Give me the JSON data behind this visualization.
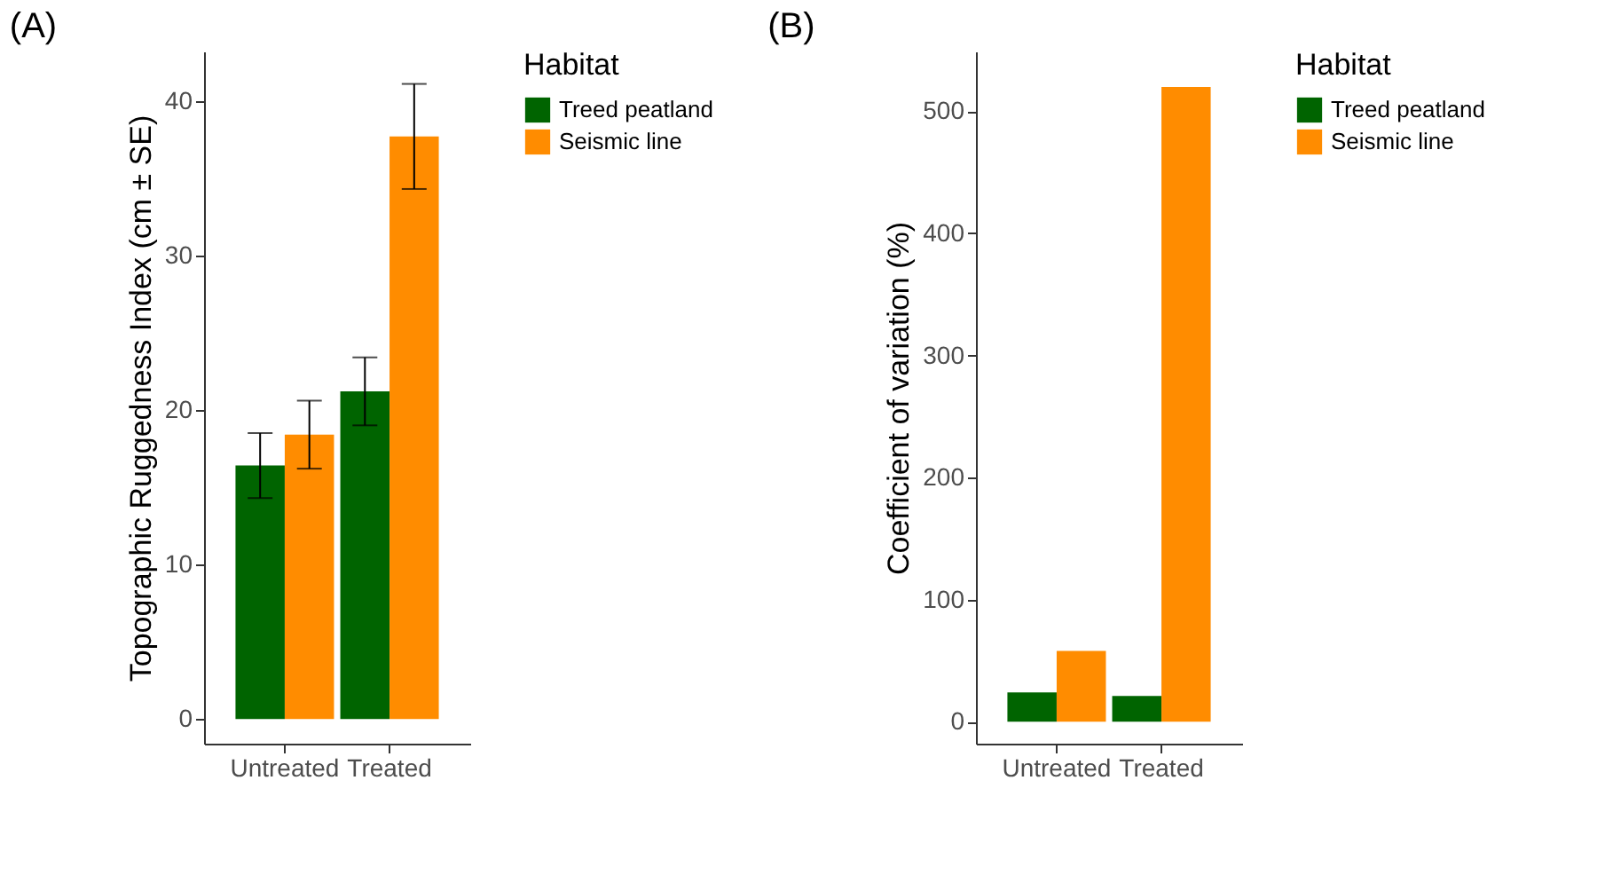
{
  "chart_data": [
    {
      "type": "bar",
      "title": "(A)",
      "ylabel": "Topographic Ruggedness Index (cm ± SE)",
      "legend_title": "Habitat",
      "categories": [
        "Untreated",
        "Treated"
      ],
      "ylim": [
        -1.6,
        43.2
      ],
      "yticks": [
        0,
        10,
        20,
        30,
        40
      ],
      "grid": false,
      "legend": "right",
      "series": [
        {
          "name": "Treed peatland",
          "color": "#006400",
          "values": [
            16.4,
            21.2
          ],
          "errors": [
            2.1,
            2.2
          ]
        },
        {
          "name": "Seismic line",
          "color": "#ff8c00",
          "values": [
            18.4,
            37.7
          ],
          "errors": [
            2.2,
            3.4
          ]
        }
      ]
    },
    {
      "type": "bar",
      "title": "(B)",
      "ylabel": "Coefficient of variation (%)",
      "legend_title": "Habitat",
      "categories": [
        "Untreated",
        "Treated"
      ],
      "ylim": [
        -18,
        549
      ],
      "yticks": [
        0,
        100,
        200,
        300,
        400,
        500
      ],
      "grid": false,
      "legend": "right",
      "series": [
        {
          "name": "Treed peatland",
          "color": "#006400",
          "values": [
            24,
            21
          ]
        },
        {
          "name": "Seismic line",
          "color": "#ff8c00",
          "values": [
            58,
            520
          ]
        }
      ]
    }
  ]
}
